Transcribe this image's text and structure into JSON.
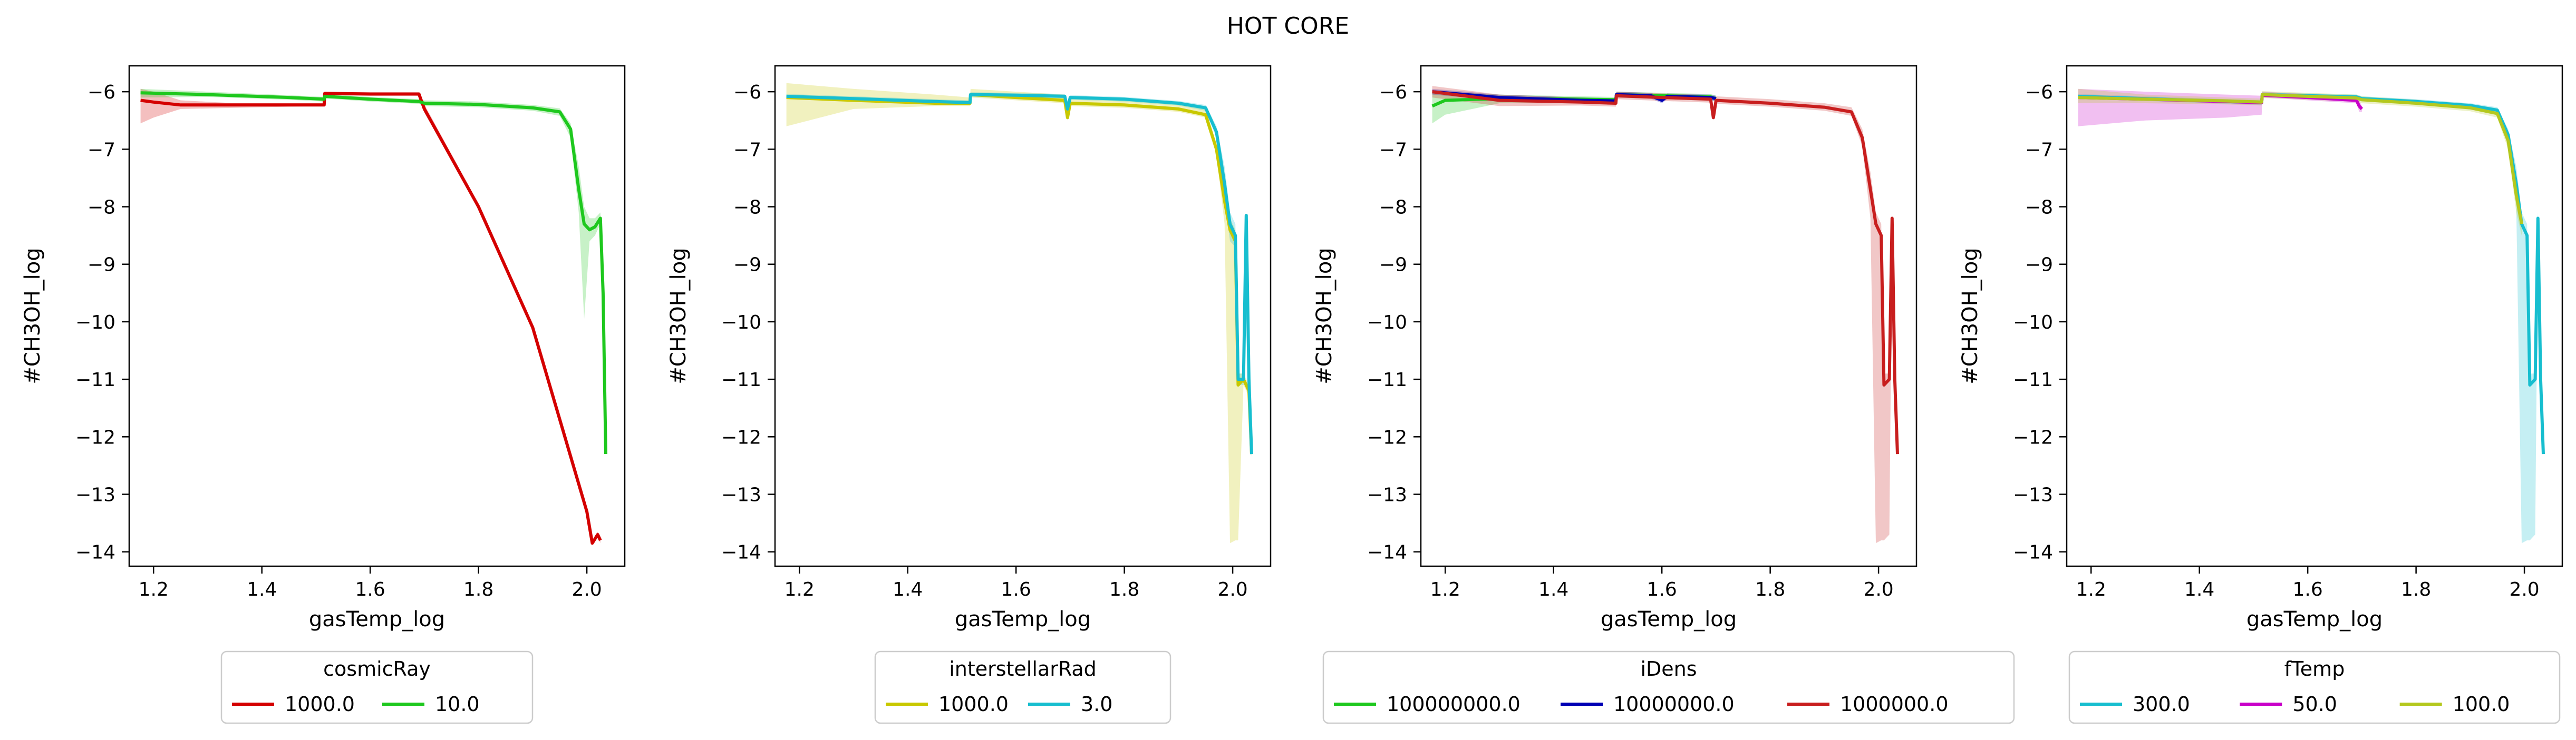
{
  "figure": {
    "title": "HOT CORE"
  },
  "chart_data": [
    {
      "type": "line",
      "title": "",
      "xlabel": "gasTemp_log",
      "ylabel": "#CH3OH_log",
      "xlim": [
        1.155,
        2.07
      ],
      "ylim": [
        -14.25,
        -5.55
      ],
      "xticks": [
        1.2,
        1.4,
        1.6,
        1.8,
        2.0
      ],
      "xtick_labels": [
        "1.2",
        "1.4",
        "1.6",
        "1.8",
        "2.0"
      ],
      "yticks": [
        -6,
        -7,
        -8,
        -9,
        -10,
        -11,
        -12,
        -13,
        -14
      ],
      "ytick_labels": [
        "−6",
        "−7",
        "−8",
        "−9",
        "−10",
        "−11",
        "−12",
        "−13",
        "−14"
      ],
      "grid": false,
      "legend": {
        "title": "cosmicRay",
        "placement": "below",
        "entries": [
          "1000.0",
          "10.0"
        ]
      },
      "series": [
        {
          "name": "1000.0",
          "color": "#d40000",
          "x": [
            1.176,
            1.2,
            1.25,
            1.35,
            1.45,
            1.515,
            1.516,
            1.6,
            1.69,
            1.7,
            1.8,
            1.9,
            2.0,
            2.01,
            2.02,
            2.025
          ],
          "y": [
            -6.15,
            -6.18,
            -6.23,
            -6.23,
            -6.23,
            -6.23,
            -6.03,
            -6.04,
            -6.04,
            -6.3,
            -8.0,
            -10.1,
            -13.3,
            -13.85,
            -13.7,
            -13.8
          ],
          "band_lower": [
            -6.55,
            -6.45,
            -6.3,
            -6.28,
            -6.26,
            -6.25,
            -6.06,
            -6.07,
            -6.07,
            -6.36,
            -8.05,
            -10.15,
            -13.35,
            -13.88,
            -13.75,
            -13.85
          ],
          "band_upper": [
            -5.95,
            -6.0,
            -6.15,
            -6.2,
            -6.2,
            -6.2,
            -6.0,
            -6.01,
            -6.01,
            -6.22,
            -7.95,
            -10.05,
            -13.25,
            -13.8,
            -13.65,
            -13.75
          ]
        },
        {
          "name": "10.0",
          "color": "#1ec81e",
          "x": [
            1.176,
            1.3,
            1.45,
            1.515,
            1.516,
            1.6,
            1.69,
            1.7,
            1.8,
            1.9,
            1.95,
            1.97,
            1.985,
            1.995,
            2.005,
            2.015,
            2.025,
            2.03,
            2.035
          ],
          "y": [
            -6.02,
            -6.05,
            -6.1,
            -6.13,
            -6.08,
            -6.13,
            -6.17,
            -6.2,
            -6.22,
            -6.28,
            -6.35,
            -6.65,
            -7.7,
            -8.3,
            -8.4,
            -8.35,
            -8.2,
            -9.5,
            -12.3
          ],
          "band_lower": [
            -6.1,
            -6.09,
            -6.14,
            -6.17,
            -6.12,
            -6.17,
            -6.21,
            -6.25,
            -6.27,
            -6.33,
            -6.42,
            -6.8,
            -8.1,
            -9.95,
            -8.6,
            -8.5,
            -8.3,
            -9.6,
            -12.35
          ],
          "band_upper": [
            -5.95,
            -6.0,
            -6.06,
            -6.09,
            -6.04,
            -6.09,
            -6.13,
            -6.15,
            -6.17,
            -6.23,
            -6.29,
            -6.55,
            -7.3,
            -8.0,
            -8.2,
            -8.2,
            -8.1,
            -9.4,
            -12.25
          ]
        }
      ]
    },
    {
      "type": "line",
      "title": "",
      "xlabel": "gasTemp_log",
      "ylabel": "#CH3OH_log",
      "xlim": [
        1.155,
        2.07
      ],
      "ylim": [
        -14.25,
        -5.55
      ],
      "xticks": [
        1.2,
        1.4,
        1.6,
        1.8,
        2.0
      ],
      "xtick_labels": [
        "1.2",
        "1.4",
        "1.6",
        "1.8",
        "2.0"
      ],
      "yticks": [
        -6,
        -7,
        -8,
        -9,
        -10,
        -11,
        -12,
        -13,
        -14
      ],
      "ytick_labels": [
        "−6",
        "−7",
        "−8",
        "−9",
        "−10",
        "−11",
        "−12",
        "−13",
        "−14"
      ],
      "grid": false,
      "legend": {
        "title": "interstellarRad",
        "placement": "below",
        "entries": [
          "1000.0",
          "3.0"
        ]
      },
      "series": [
        {
          "name": "1000.0",
          "color": "#c8c800",
          "x": [
            1.176,
            1.3,
            1.45,
            1.515,
            1.516,
            1.6,
            1.69,
            1.695,
            1.7,
            1.8,
            1.9,
            1.95,
            1.97,
            1.985,
            1.995,
            2.005,
            2.01,
            2.02,
            2.03,
            2.035
          ],
          "y": [
            -6.1,
            -6.15,
            -6.2,
            -6.2,
            -6.05,
            -6.1,
            -6.15,
            -6.45,
            -6.2,
            -6.23,
            -6.3,
            -6.4,
            -7.0,
            -7.9,
            -8.4,
            -8.6,
            -11.1,
            -11.0,
            -11.2,
            -12.3
          ],
          "band_lower": [
            -6.6,
            -6.3,
            -6.25,
            -6.25,
            -6.1,
            -6.15,
            -6.2,
            -6.5,
            -6.25,
            -6.28,
            -6.35,
            -6.45,
            -7.1,
            -8.3,
            -13.85,
            -13.8,
            -13.8,
            -11.1,
            -11.3,
            -12.35
          ],
          "band_upper": [
            -5.85,
            -5.95,
            -6.05,
            -6.1,
            -5.95,
            -6.0,
            -6.05,
            -6.4,
            -6.1,
            -6.15,
            -6.2,
            -6.3,
            -6.9,
            -7.6,
            -8.2,
            -8.4,
            -10.9,
            -10.9,
            -11.1,
            -12.25
          ]
        },
        {
          "name": "3.0",
          "color": "#17becf",
          "x": [
            1.176,
            1.3,
            1.45,
            1.515,
            1.516,
            1.6,
            1.69,
            1.695,
            1.7,
            1.8,
            1.9,
            1.95,
            1.97,
            1.985,
            1.995,
            2.005,
            2.01,
            2.02,
            2.025,
            2.03,
            2.035
          ],
          "y": [
            -6.08,
            -6.12,
            -6.17,
            -6.19,
            -6.05,
            -6.06,
            -6.08,
            -6.3,
            -6.1,
            -6.13,
            -6.2,
            -6.28,
            -6.7,
            -7.6,
            -8.3,
            -8.5,
            -11.0,
            -11.0,
            -8.15,
            -11.0,
            -12.3
          ],
          "band_lower": [
            -6.12,
            -6.16,
            -6.21,
            -6.23,
            -6.09,
            -6.1,
            -6.12,
            -6.34,
            -6.14,
            -6.17,
            -6.24,
            -6.33,
            -6.8,
            -7.9,
            -8.6,
            -8.7,
            -11.1,
            -11.1,
            -8.4,
            -11.1,
            -12.35
          ],
          "band_upper": [
            -6.04,
            -6.08,
            -6.13,
            -6.15,
            -6.01,
            -6.02,
            -6.04,
            -6.26,
            -6.06,
            -6.09,
            -6.16,
            -6.23,
            -6.6,
            -7.3,
            -8.1,
            -8.3,
            -10.9,
            -10.9,
            -8.1,
            -10.9,
            -12.25
          ]
        }
      ]
    },
    {
      "type": "line",
      "title": "",
      "xlabel": "gasTemp_log",
      "ylabel": "#CH3OH_log",
      "xlim": [
        1.155,
        2.07
      ],
      "ylim": [
        -14.25,
        -5.55
      ],
      "xticks": [
        1.2,
        1.4,
        1.6,
        1.8,
        2.0
      ],
      "xtick_labels": [
        "1.2",
        "1.4",
        "1.6",
        "1.8",
        "2.0"
      ],
      "yticks": [
        -6,
        -7,
        -8,
        -9,
        -10,
        -11,
        -12,
        -13,
        -14
      ],
      "ytick_labels": [
        "−6",
        "−7",
        "−8",
        "−9",
        "−10",
        "−11",
        "−12",
        "−13",
        "−14"
      ],
      "grid": false,
      "legend": {
        "title": "iDens",
        "placement": "below",
        "entries": [
          "100000000.0",
          "10000000.0",
          "1000000.0"
        ]
      },
      "series": [
        {
          "name": "100000000.0",
          "color": "#1ec81e",
          "x": [
            1.176,
            1.2,
            1.3,
            1.45,
            1.515,
            1.516,
            1.6,
            1.69,
            1.7
          ],
          "y": [
            -6.25,
            -6.15,
            -6.12,
            -6.13,
            -6.14,
            -6.05,
            -6.07,
            -6.09,
            -6.12
          ],
          "band_lower": [
            -6.55,
            -6.4,
            -6.2,
            -6.18,
            -6.19,
            -6.1,
            -6.12,
            -6.14,
            -6.17
          ],
          "band_upper": [
            -6.0,
            -6.0,
            -6.05,
            -6.08,
            -6.09,
            -6.0,
            -6.02,
            -6.04,
            -6.07
          ]
        },
        {
          "name": "10000000.0",
          "color": "#0000b4",
          "x": [
            1.176,
            1.3,
            1.45,
            1.515,
            1.516,
            1.58,
            1.6,
            1.61,
            1.69,
            1.7
          ],
          "y": [
            -6.0,
            -6.1,
            -6.15,
            -6.16,
            -6.05,
            -6.07,
            -6.15,
            -6.08,
            -6.1,
            -6.12
          ],
          "band_lower": [
            -6.05,
            -6.15,
            -6.2,
            -6.21,
            -6.1,
            -6.12,
            -6.2,
            -6.13,
            -6.15,
            -6.17
          ],
          "band_upper": [
            -5.95,
            -6.05,
            -6.1,
            -6.11,
            -6.0,
            -6.02,
            -6.1,
            -6.03,
            -6.05,
            -6.07
          ]
        },
        {
          "name": "1000000.0",
          "color": "#c81e1e",
          "x": [
            1.176,
            1.3,
            1.45,
            1.515,
            1.516,
            1.6,
            1.69,
            1.695,
            1.7,
            1.8,
            1.9,
            1.95,
            1.97,
            1.985,
            1.995,
            2.005,
            2.01,
            2.02,
            2.025,
            2.03,
            2.035
          ],
          "y": [
            -6.0,
            -6.15,
            -6.18,
            -6.2,
            -6.07,
            -6.1,
            -6.13,
            -6.45,
            -6.15,
            -6.2,
            -6.27,
            -6.35,
            -6.8,
            -7.7,
            -8.3,
            -8.5,
            -11.1,
            -11.0,
            -8.2,
            -11.0,
            -12.3
          ],
          "band_lower": [
            -6.1,
            -6.25,
            -6.24,
            -6.26,
            -6.13,
            -6.16,
            -6.19,
            -6.5,
            -6.21,
            -6.26,
            -6.33,
            -6.42,
            -6.95,
            -8.2,
            -13.85,
            -13.8,
            -13.8,
            -13.7,
            -8.5,
            -11.1,
            -12.35
          ],
          "band_upper": [
            -5.9,
            -6.05,
            -6.1,
            -6.12,
            -6.0,
            -6.03,
            -6.06,
            -6.4,
            -6.08,
            -6.13,
            -6.2,
            -6.27,
            -6.65,
            -7.4,
            -8.1,
            -8.3,
            -10.9,
            -10.9,
            -8.1,
            -10.9,
            -12.25
          ]
        }
      ]
    },
    {
      "type": "line",
      "title": "",
      "xlabel": "gasTemp_log",
      "ylabel": "#CH3OH_log",
      "xlim": [
        1.155,
        2.07
      ],
      "ylim": [
        -14.25,
        -5.55
      ],
      "xticks": [
        1.2,
        1.4,
        1.6,
        1.8,
        2.0
      ],
      "xtick_labels": [
        "1.2",
        "1.4",
        "1.6",
        "1.8",
        "2.0"
      ],
      "yticks": [
        -6,
        -7,
        -8,
        -9,
        -10,
        -11,
        -12,
        -13,
        -14
      ],
      "ytick_labels": [
        "−6",
        "−7",
        "−8",
        "−9",
        "−10",
        "−11",
        "−12",
        "−13",
        "−14"
      ],
      "grid": false,
      "legend": {
        "title": "fTemp",
        "placement": "below",
        "entries": [
          "300.0",
          "50.0",
          "100.0"
        ]
      },
      "series": [
        {
          "name": "300.0",
          "color": "#17becf",
          "x": [
            1.176,
            1.3,
            1.45,
            1.515,
            1.516,
            1.6,
            1.69,
            1.7,
            1.8,
            1.9,
            1.95,
            1.97,
            1.985,
            1.995,
            2.005,
            2.01,
            2.02,
            2.025,
            2.03,
            2.035
          ],
          "y": [
            -6.08,
            -6.12,
            -6.17,
            -6.19,
            -6.05,
            -6.07,
            -6.09,
            -6.12,
            -6.17,
            -6.24,
            -6.32,
            -6.75,
            -7.6,
            -8.3,
            -8.5,
            -11.1,
            -11.0,
            -8.2,
            -11.0,
            -12.3
          ],
          "band_lower": [
            -6.12,
            -6.16,
            -6.21,
            -6.23,
            -6.09,
            -6.11,
            -6.13,
            -6.16,
            -6.21,
            -6.28,
            -6.37,
            -6.85,
            -8.0,
            -13.85,
            -13.8,
            -13.8,
            -13.7,
            -8.5,
            -11.1,
            -12.35
          ],
          "band_upper": [
            -6.04,
            -6.08,
            -6.13,
            -6.15,
            -6.01,
            -6.03,
            -6.05,
            -6.08,
            -6.13,
            -6.2,
            -6.27,
            -6.65,
            -7.3,
            -8.1,
            -8.3,
            -10.9,
            -10.9,
            -8.1,
            -10.9,
            -12.25
          ]
        },
        {
          "name": "50.0",
          "color": "#c800c8",
          "x": [
            1.176,
            1.3,
            1.45,
            1.515,
            1.516,
            1.6,
            1.69,
            1.695,
            1.7
          ],
          "y": [
            -6.1,
            -6.13,
            -6.17,
            -6.19,
            -6.06,
            -6.1,
            -6.15,
            -6.25,
            -6.3
          ],
          "band_lower": [
            -6.6,
            -6.5,
            -6.45,
            -6.4,
            -6.1,
            -6.15,
            -6.2,
            -6.35,
            -6.35
          ],
          "band_upper": [
            -5.95,
            -6.0,
            -6.05,
            -6.07,
            -6.0,
            -6.04,
            -6.08,
            -6.15,
            -6.25
          ]
        },
        {
          "name": "100.0",
          "color": "#b4c81e",
          "x": [
            1.176,
            1.3,
            1.45,
            1.515,
            1.516,
            1.6,
            1.69,
            1.7,
            1.8,
            1.9,
            1.95,
            1.97,
            1.985,
            1.995
          ],
          "y": [
            -6.1,
            -6.13,
            -6.16,
            -6.18,
            -6.05,
            -6.08,
            -6.11,
            -6.14,
            -6.2,
            -6.28,
            -6.38,
            -6.85,
            -7.8,
            -8.3
          ],
          "band_lower": [
            -6.2,
            -6.2,
            -6.22,
            -6.24,
            -6.11,
            -6.14,
            -6.17,
            -6.2,
            -6.26,
            -6.34,
            -6.45,
            -7.0,
            -8.1,
            -8.5
          ],
          "band_upper": [
            -5.95,
            -6.05,
            -6.1,
            -6.12,
            -5.99,
            -6.02,
            -6.05,
            -6.08,
            -6.14,
            -6.22,
            -6.31,
            -6.7,
            -7.5,
            -8.1
          ]
        }
      ]
    }
  ]
}
